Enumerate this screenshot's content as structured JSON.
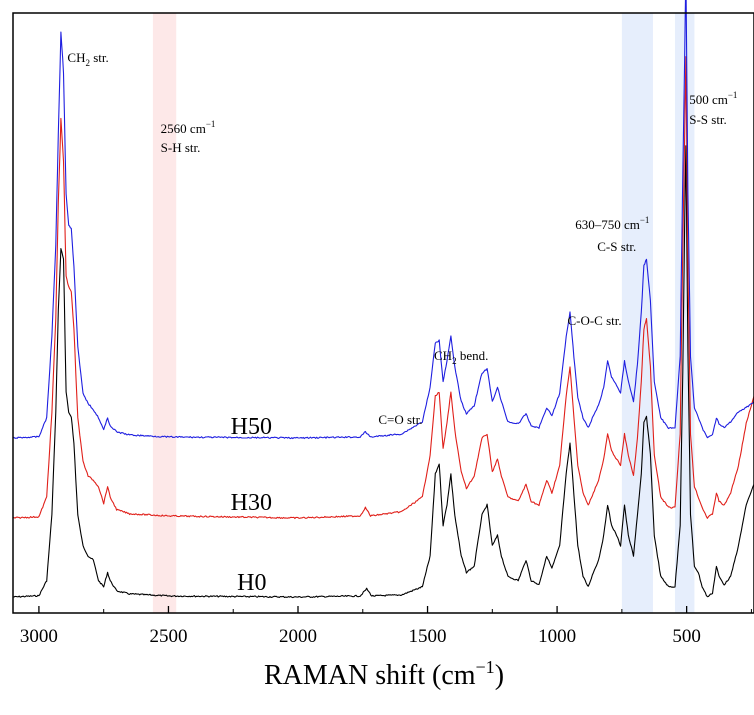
{
  "chart_data": {
    "type": "line",
    "xlabel": "RAMAN shift (cm",
    "xlabel_sup": "−1",
    "xlabel_end": ")",
    "xlim": [
      3100,
      240
    ],
    "x_reversed": true,
    "x_ticks": [
      3000,
      2500,
      2000,
      1500,
      1000,
      500
    ],
    "x_tick_labels": [
      "3000",
      "2500",
      "2000",
      "1500",
      "1000",
      "500"
    ],
    "y_ticks_shown": false,
    "grid": false,
    "legend": "none",
    "bands": [
      {
        "from": 2560,
        "to": 2470,
        "color": "#fde8e8"
      },
      {
        "from": 750,
        "to": 630,
        "color": "#e6eefc"
      },
      {
        "from": 545,
        "to": 470,
        "color": "#e6eefc"
      }
    ],
    "series": [
      {
        "name": "H0",
        "color": "#000000",
        "points": [
          [
            3100,
            0.0
          ],
          [
            3000,
            0.6
          ],
          [
            2970,
            8
          ],
          [
            2950,
            40
          ],
          [
            2935,
            90
          ],
          [
            2925,
            140
          ],
          [
            2915,
            170
          ],
          [
            2905,
            165
          ],
          [
            2895,
            100
          ],
          [
            2885,
            90
          ],
          [
            2875,
            88
          ],
          [
            2865,
            75
          ],
          [
            2850,
            40
          ],
          [
            2830,
            25
          ],
          [
            2810,
            20
          ],
          [
            2790,
            18
          ],
          [
            2770,
            8
          ],
          [
            2750,
            5
          ],
          [
            2735,
            12
          ],
          [
            2725,
            8
          ],
          [
            2700,
            3
          ],
          [
            2650,
            1.5
          ],
          [
            2500,
            0.5
          ],
          [
            2000,
            0
          ],
          [
            1760,
            0.5
          ],
          [
            1735,
            4
          ],
          [
            1715,
            0.5
          ],
          [
            1600,
            1
          ],
          [
            1520,
            5
          ],
          [
            1490,
            20
          ],
          [
            1470,
            60
          ],
          [
            1455,
            65
          ],
          [
            1440,
            35
          ],
          [
            1425,
            45
          ],
          [
            1410,
            60
          ],
          [
            1395,
            40
          ],
          [
            1370,
            20
          ],
          [
            1350,
            12
          ],
          [
            1320,
            15
          ],
          [
            1290,
            40
          ],
          [
            1270,
            45
          ],
          [
            1250,
            25
          ],
          [
            1230,
            30
          ],
          [
            1215,
            20
          ],
          [
            1190,
            10
          ],
          [
            1150,
            8
          ],
          [
            1120,
            18
          ],
          [
            1100,
            8
          ],
          [
            1070,
            6
          ],
          [
            1040,
            20
          ],
          [
            1020,
            14
          ],
          [
            990,
            25
          ],
          [
            965,
            60
          ],
          [
            950,
            75
          ],
          [
            935,
            50
          ],
          [
            920,
            25
          ],
          [
            900,
            10
          ],
          [
            880,
            5
          ],
          [
            860,
            12
          ],
          [
            840,
            18
          ],
          [
            820,
            30
          ],
          [
            805,
            45
          ],
          [
            790,
            35
          ],
          [
            770,
            30
          ],
          [
            755,
            25
          ],
          [
            740,
            45
          ],
          [
            725,
            30
          ],
          [
            705,
            20
          ],
          [
            690,
            40
          ],
          [
            675,
            60
          ],
          [
            665,
            85
          ],
          [
            655,
            88
          ],
          [
            640,
            70
          ],
          [
            625,
            30
          ],
          [
            600,
            10
          ],
          [
            570,
            5
          ],
          [
            545,
            5
          ],
          [
            525,
            35
          ],
          [
            515,
            110
          ],
          [
            508,
            180
          ],
          [
            503,
            220
          ],
          [
            495,
            120
          ],
          [
            485,
            40
          ],
          [
            470,
            15
          ],
          [
            455,
            12
          ],
          [
            440,
            5
          ],
          [
            420,
            0
          ],
          [
            400,
            2
          ],
          [
            385,
            15
          ],
          [
            375,
            10
          ],
          [
            355,
            6
          ],
          [
            330,
            10
          ],
          [
            300,
            25
          ],
          [
            270,
            45
          ],
          [
            240,
            55
          ]
        ]
      },
      {
        "name": "H30",
        "color": "#e0201a",
        "points": [
          [
            3100,
            0.0
          ],
          [
            3000,
            0.6
          ],
          [
            2970,
            10
          ],
          [
            2950,
            50
          ],
          [
            2935,
            95
          ],
          [
            2925,
            150
          ],
          [
            2915,
            190
          ],
          [
            2905,
            170
          ],
          [
            2895,
            115
          ],
          [
            2885,
            110
          ],
          [
            2875,
            108
          ],
          [
            2865,
            90
          ],
          [
            2850,
            48
          ],
          [
            2830,
            27
          ],
          [
            2810,
            20
          ],
          [
            2790,
            18
          ],
          [
            2770,
            15
          ],
          [
            2750,
            7
          ],
          [
            2735,
            15
          ],
          [
            2725,
            10
          ],
          [
            2700,
            4
          ],
          [
            2650,
            2
          ],
          [
            2500,
            1
          ],
          [
            2000,
            0
          ],
          [
            1760,
            1
          ],
          [
            1740,
            5
          ],
          [
            1720,
            1
          ],
          [
            1600,
            3
          ],
          [
            1520,
            10
          ],
          [
            1490,
            30
          ],
          [
            1470,
            58
          ],
          [
            1455,
            60
          ],
          [
            1440,
            33
          ],
          [
            1425,
            45
          ],
          [
            1410,
            60
          ],
          [
            1395,
            42
          ],
          [
            1370,
            22
          ],
          [
            1350,
            14
          ],
          [
            1320,
            20
          ],
          [
            1290,
            38
          ],
          [
            1270,
            40
          ],
          [
            1250,
            22
          ],
          [
            1230,
            28
          ],
          [
            1215,
            20
          ],
          [
            1190,
            10
          ],
          [
            1150,
            8
          ],
          [
            1120,
            16
          ],
          [
            1100,
            8
          ],
          [
            1070,
            6
          ],
          [
            1040,
            18
          ],
          [
            1020,
            12
          ],
          [
            990,
            25
          ],
          [
            965,
            58
          ],
          [
            950,
            72
          ],
          [
            935,
            48
          ],
          [
            920,
            25
          ],
          [
            900,
            12
          ],
          [
            880,
            6
          ],
          [
            860,
            12
          ],
          [
            840,
            18
          ],
          [
            820,
            28
          ],
          [
            805,
            40
          ],
          [
            790,
            32
          ],
          [
            770,
            28
          ],
          [
            755,
            25
          ],
          [
            740,
            40
          ],
          [
            725,
            30
          ],
          [
            705,
            20
          ],
          [
            690,
            38
          ],
          [
            675,
            65
          ],
          [
            665,
            90
          ],
          [
            655,
            95
          ],
          [
            640,
            72
          ],
          [
            625,
            30
          ],
          [
            600,
            10
          ],
          [
            570,
            5
          ],
          [
            545,
            5
          ],
          [
            525,
            40
          ],
          [
            515,
            130
          ],
          [
            508,
            180
          ],
          [
            503,
            220
          ],
          [
            495,
            120
          ],
          [
            485,
            40
          ],
          [
            470,
            15
          ],
          [
            455,
            10
          ],
          [
            440,
            5
          ],
          [
            420,
            0
          ],
          [
            400,
            2
          ],
          [
            385,
            12
          ],
          [
            375,
            8
          ],
          [
            355,
            6
          ],
          [
            330,
            12
          ],
          [
            300,
            25
          ],
          [
            270,
            45
          ],
          [
            240,
            58
          ]
        ]
      },
      {
        "name": "H50",
        "color": "#1f1fe0",
        "points": [
          [
            3100,
            0.0
          ],
          [
            3000,
            0.6
          ],
          [
            2970,
            10
          ],
          [
            2950,
            50
          ],
          [
            2935,
            95
          ],
          [
            2925,
            150
          ],
          [
            2915,
            200
          ],
          [
            2905,
            180
          ],
          [
            2895,
            120
          ],
          [
            2885,
            105
          ],
          [
            2875,
            103
          ],
          [
            2865,
            85
          ],
          [
            2850,
            45
          ],
          [
            2830,
            22
          ],
          [
            2810,
            17
          ],
          [
            2790,
            14
          ],
          [
            2770,
            10
          ],
          [
            2750,
            4
          ],
          [
            2735,
            10
          ],
          [
            2725,
            6
          ],
          [
            2700,
            3
          ],
          [
            2650,
            1.5
          ],
          [
            2500,
            0.5
          ],
          [
            2000,
            0
          ],
          [
            1760,
            0.5
          ],
          [
            1740,
            3
          ],
          [
            1720,
            0.5
          ],
          [
            1600,
            2
          ],
          [
            1520,
            8
          ],
          [
            1490,
            25
          ],
          [
            1470,
            47
          ],
          [
            1455,
            48
          ],
          [
            1440,
            28
          ],
          [
            1425,
            38
          ],
          [
            1410,
            50
          ],
          [
            1395,
            35
          ],
          [
            1370,
            18
          ],
          [
            1350,
            12
          ],
          [
            1320,
            16
          ],
          [
            1290,
            32
          ],
          [
            1270,
            34
          ],
          [
            1250,
            18
          ],
          [
            1230,
            25
          ],
          [
            1215,
            18
          ],
          [
            1190,
            8
          ],
          [
            1150,
            7
          ],
          [
            1120,
            12
          ],
          [
            1100,
            6
          ],
          [
            1070,
            5
          ],
          [
            1040,
            15
          ],
          [
            1020,
            11
          ],
          [
            990,
            22
          ],
          [
            965,
            50
          ],
          [
            950,
            62
          ],
          [
            935,
            40
          ],
          [
            920,
            20
          ],
          [
            900,
            10
          ],
          [
            880,
            5
          ],
          [
            860,
            11
          ],
          [
            840,
            16
          ],
          [
            820,
            25
          ],
          [
            805,
            38
          ],
          [
            790,
            30
          ],
          [
            770,
            26
          ],
          [
            755,
            22
          ],
          [
            740,
            38
          ],
          [
            725,
            28
          ],
          [
            705,
            18
          ],
          [
            690,
            36
          ],
          [
            675,
            62
          ],
          [
            665,
            85
          ],
          [
            655,
            88
          ],
          [
            640,
            68
          ],
          [
            625,
            28
          ],
          [
            600,
            10
          ],
          [
            570,
            5
          ],
          [
            545,
            5
          ],
          [
            525,
            40
          ],
          [
            515,
            130
          ],
          [
            508,
            185
          ],
          [
            503,
            230
          ],
          [
            495,
            120
          ],
          [
            485,
            40
          ],
          [
            470,
            15
          ],
          [
            455,
            10
          ],
          [
            440,
            5
          ],
          [
            420,
            0
          ],
          [
            400,
            2
          ],
          [
            385,
            10
          ],
          [
            375,
            7
          ],
          [
            355,
            5
          ],
          [
            330,
            8
          ],
          [
            300,
            13
          ],
          [
            270,
            15
          ],
          [
            240,
            18
          ]
        ]
      }
    ],
    "series_labels": [
      {
        "series": "H50",
        "text": "H50",
        "x": 2260
      },
      {
        "series": "H30",
        "text": "H30",
        "x": 2260
      },
      {
        "series": "H0",
        "text": "H0",
        "x": 2235
      }
    ],
    "annotations": [
      {
        "main": "CH",
        "sub": "2",
        "tail": " str.",
        "x": 2890,
        "line": 1
      },
      {
        "main": "2560 cm",
        "sup": "−1",
        "x": 2530,
        "line": 1
      },
      {
        "main": "S-H str.",
        "x": 2530,
        "line": 2
      },
      {
        "main": "630–750 cm",
        "sup": "−1",
        "x": 930,
        "line": 1
      },
      {
        "main": "C-S str.",
        "x": 845,
        "line": 2
      },
      {
        "main": "500 cm",
        "sup": "−1",
        "x": 490,
        "line": 1
      },
      {
        "main": "S-S str.",
        "x": 490,
        "line": 2
      },
      {
        "main": "C-O-C str.",
        "x": 960,
        "line": 1
      },
      {
        "main": "CH",
        "sub": "2",
        "tail": " bend.",
        "x": 1475,
        "line": 1
      },
      {
        "main": "C=O str.",
        "x": 1690,
        "line": 1
      }
    ]
  }
}
